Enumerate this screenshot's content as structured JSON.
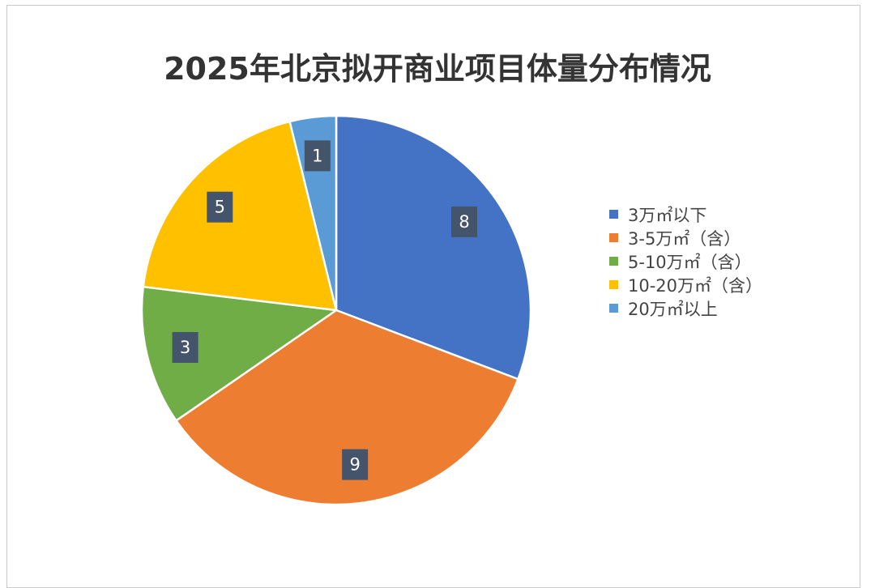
{
  "chart_data": {
    "type": "pie",
    "title": "2025年北京拟开商业项目体量分布情况",
    "categories": [
      "3万㎡以下",
      "3-5万㎡（含）",
      "5-10万㎡（含）",
      "10-20万㎡（含）",
      "20万㎡以上"
    ],
    "values": [
      8,
      9,
      3,
      5,
      1
    ],
    "colors": [
      "#4472C4",
      "#ED7D31",
      "#70AD47",
      "#FFC000",
      "#5B9BD5"
    ],
    "data_labels": [
      "8",
      "9",
      "3",
      "5",
      "1"
    ],
    "legend_position": "right",
    "start_angle": "12 o'clock",
    "direction": "clockwise"
  }
}
